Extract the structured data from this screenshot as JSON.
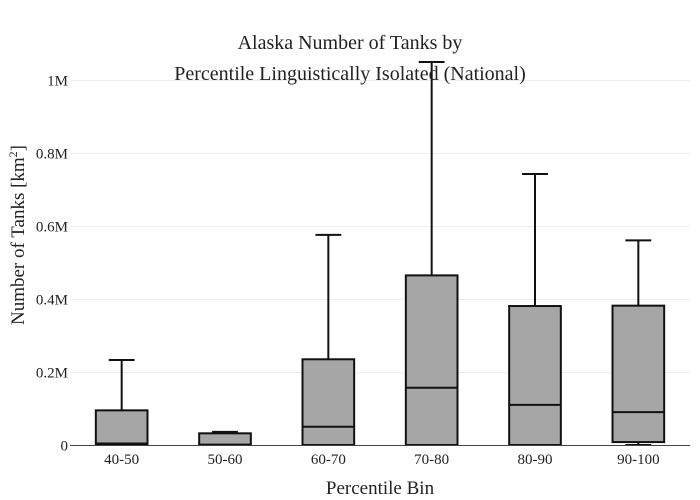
{
  "chart_data": {
    "type": "box",
    "title_line1": "Alaska Number of Tanks by",
    "title_line2": "Percentile Linguistically Isolated (National)",
    "xlabel": "Percentile Bin",
    "ylabel": "Number of Tanks  [km",
    "ylabel_sup": "2",
    "ylabel_end": "]",
    "ylim": [
      0,
      1050000
    ],
    "yticks": [
      {
        "value": 0,
        "label": "0"
      },
      {
        "value": 200000,
        "label": "0.2M"
      },
      {
        "value": 400000,
        "label": "0.4M"
      },
      {
        "value": 600000,
        "label": "0.6M"
      },
      {
        "value": 800000,
        "label": "0.8M"
      },
      {
        "value": 1000000,
        "label": "1M"
      }
    ],
    "grid": true,
    "categories": [
      "40-50",
      "50-60",
      "60-70",
      "70-80",
      "80-90",
      "90-100"
    ],
    "boxes": [
      {
        "min": 0,
        "q1": 2000,
        "median": 4000,
        "q3": 95000,
        "max": 233000
      },
      {
        "min": 0,
        "q1": 0,
        "median": 1000,
        "q3": 32000,
        "max": 36000
      },
      {
        "min": 0,
        "q1": 0,
        "median": 50000,
        "q3": 235000,
        "max": 576000
      },
      {
        "min": 0,
        "q1": 0,
        "median": 157000,
        "q3": 465000,
        "max": 1050000
      },
      {
        "min": 0,
        "q1": 0,
        "median": 110000,
        "q3": 381000,
        "max": 743000
      },
      {
        "min": 0,
        "q1": 8000,
        "median": 90000,
        "q3": 382000,
        "max": 561000
      }
    ],
    "colors": {
      "box_fill": "#a6a6a6",
      "line": "#111111",
      "grid": "#eeeeee"
    }
  }
}
